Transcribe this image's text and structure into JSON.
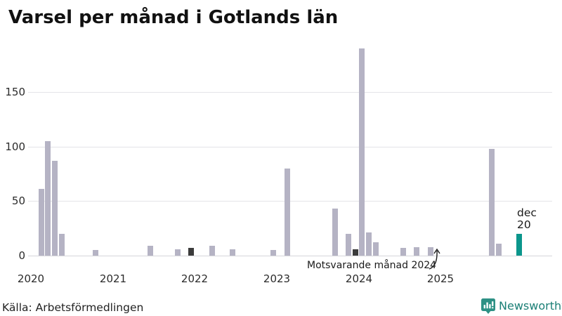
{
  "title": "Varsel per månad i Gotlands län",
  "source": "Källa: Arbetsförmedlingen",
  "branding": {
    "name": "Newsworthy"
  },
  "annotation": {
    "text": "Motsvarande månad 2024",
    "points_to": "dec 2024",
    "pointed_value": 0
  },
  "highlight_label": {
    "line1": "dec",
    "line2": "20"
  },
  "colors": {
    "bar_default": "#b5b3c4",
    "bar_reference": "#3b3b3b",
    "bar_highlight": "#0b968c",
    "grid": "#e4e4e8",
    "axis_text": "#2b2b2b",
    "brand_teal": "#1b7f76"
  },
  "chart_data": {
    "type": "bar",
    "title": "Varsel per månad i Gotlands län",
    "xlabel": "",
    "ylabel": "",
    "x_ticks": [
      2020,
      2021,
      2022,
      2023,
      2024,
      2025
    ],
    "y_ticks": [
      0,
      50,
      100,
      150
    ],
    "ylim": [
      0,
      195
    ],
    "grid": true,
    "bars": [
      {
        "year": 2020,
        "month": "feb",
        "value": 61,
        "style": "default"
      },
      {
        "year": 2020,
        "month": "mar",
        "value": 105,
        "style": "default"
      },
      {
        "year": 2020,
        "month": "apr",
        "value": 87,
        "style": "default"
      },
      {
        "year": 2020,
        "month": "maj",
        "value": 20,
        "style": "default"
      },
      {
        "year": 2020,
        "month": "okt",
        "value": 5,
        "style": "default"
      },
      {
        "year": 2021,
        "month": "jun",
        "value": 9,
        "style": "default"
      },
      {
        "year": 2021,
        "month": "okt",
        "value": 6,
        "style": "default"
      },
      {
        "year": 2021,
        "month": "dec",
        "value": 7,
        "style": "reference"
      },
      {
        "year": 2022,
        "month": "mar",
        "value": 9,
        "style": "default"
      },
      {
        "year": 2022,
        "month": "jun",
        "value": 6,
        "style": "default"
      },
      {
        "year": 2022,
        "month": "dec",
        "value": 5,
        "style": "default"
      },
      {
        "year": 2023,
        "month": "feb",
        "value": 80,
        "style": "default"
      },
      {
        "year": 2023,
        "month": "sep",
        "value": 43,
        "style": "default"
      },
      {
        "year": 2023,
        "month": "nov",
        "value": 20,
        "style": "default"
      },
      {
        "year": 2023,
        "month": "dec",
        "value": 6,
        "style": "reference"
      },
      {
        "year": 2024,
        "month": "jan",
        "value": 190,
        "style": "default"
      },
      {
        "year": 2024,
        "month": "feb",
        "value": 21,
        "style": "default"
      },
      {
        "year": 2024,
        "month": "mar",
        "value": 12,
        "style": "default"
      },
      {
        "year": 2024,
        "month": "jul",
        "value": 7,
        "style": "default"
      },
      {
        "year": 2024,
        "month": "sep",
        "value": 8,
        "style": "default"
      },
      {
        "year": 2024,
        "month": "nov",
        "value": 8,
        "style": "default"
      },
      {
        "year": 2024,
        "month": "dec",
        "value": 0,
        "style": "reference"
      },
      {
        "year": 2025,
        "month": "aug",
        "value": 98,
        "style": "default"
      },
      {
        "year": 2025,
        "month": "sep",
        "value": 11,
        "style": "default"
      },
      {
        "year": 2025,
        "month": "dec",
        "value": 20,
        "style": "highlight"
      }
    ]
  }
}
